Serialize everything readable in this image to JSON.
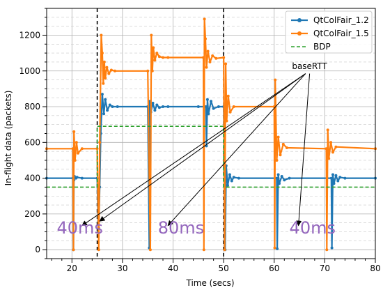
{
  "chart_data": {
    "type": "line",
    "xlabel": "Time (secs)",
    "ylabel": "In-flight data (packets)",
    "xlim": [
      15,
      80
    ],
    "ylim": [
      -50,
      1350
    ],
    "x_ticks": [
      20,
      30,
      40,
      50,
      60,
      70,
      80
    ],
    "y_ticks": [
      0,
      200,
      400,
      600,
      800,
      1000,
      1200
    ],
    "grid": true,
    "legend_position": "top-right",
    "colors": {
      "s1": "#1f77b4",
      "s2": "#ff7f0e",
      "bdp": "#2ca02c",
      "annot": "#9467bd"
    },
    "series": [
      {
        "name": "QtColFair_1.2",
        "color": "#1f77b4",
        "style": "line-marker",
        "x": [
          15,
          20.2,
          20.3,
          20.4,
          20.5,
          20.8,
          21,
          22,
          25,
          25.2,
          25.3,
          25.5,
          25.7,
          26,
          26.3,
          26.6,
          27,
          27.5,
          28,
          29,
          35,
          35.3,
          35.4,
          35.6,
          36,
          36.4,
          36.8,
          37.3,
          38,
          39,
          45,
          46.5,
          46.6,
          46.8,
          47,
          47.5,
          48,
          49,
          50,
          50.2,
          50.3,
          50.5,
          50.8,
          51.2,
          51.6,
          52,
          53,
          60.5,
          60.6,
          60.8,
          61,
          61.5,
          62,
          63,
          71.3,
          71.4,
          71.6,
          71.8,
          72.2,
          72.6,
          73,
          74,
          80
        ],
        "y": [
          400,
          400,
          0,
          390,
          410,
          400,
          405,
          400,
          400,
          100,
          120,
          350,
          650,
          870,
          760,
          840,
          780,
          810,
          800,
          800,
          800,
          10,
          830,
          770,
          820,
          780,
          810,
          795,
          800,
          800,
          800,
          800,
          580,
          840,
          760,
          830,
          790,
          800,
          800,
          320,
          0,
          470,
          360,
          420,
          385,
          405,
          400,
          400,
          5,
          420,
          370,
          410,
          390,
          400,
          400,
          10,
          420,
          370,
          415,
          385,
          405,
          400,
          400
        ]
      },
      {
        "name": "QtColFair_1.5",
        "color": "#ff7f0e",
        "style": "line-marker",
        "x": [
          15,
          20.2,
          20.3,
          20.4,
          20.6,
          20.9,
          21.2,
          22,
          25,
          25.3,
          25.5,
          25.8,
          26,
          26.2,
          26.4,
          26.6,
          26.9,
          27.3,
          27.8,
          28.5,
          35,
          35.5,
          35.7,
          35.9,
          36.1,
          36.4,
          36.8,
          37.3,
          38,
          39,
          46,
          46.1,
          46.2,
          46.4,
          46.6,
          46.9,
          47.3,
          47.8,
          48.5,
          50,
          50.2,
          50.4,
          50.6,
          50.9,
          51.3,
          52,
          60,
          60.1,
          60.2,
          60.5,
          60.8,
          61.2,
          61.8,
          62.5,
          70.3,
          70.4,
          70.6,
          70.8,
          71.2,
          71.6,
          72.2,
          80
        ],
        "y": [
          565,
          565,
          0,
          660,
          500,
          600,
          540,
          565,
          565,
          0,
          600,
          1200,
          1100,
          930,
          1050,
          960,
          1020,
          985,
          1005,
          1000,
          1000,
          0,
          1200,
          1000,
          1130,
          1060,
          1100,
          1080,
          1075,
          1075,
          1075,
          0,
          1290,
          1180,
          1020,
          1110,
          1050,
          1085,
          1070,
          1075,
          0,
          1040,
          720,
          860,
          770,
          800,
          800,
          10,
          950,
          500,
          630,
          530,
          590,
          570,
          565,
          0,
          670,
          510,
          600,
          545,
          575,
          565
        ]
      },
      {
        "name": "BDP",
        "color": "#2ca02c",
        "style": "dashed",
        "x": [
          15,
          25,
          25,
          50,
          50,
          80
        ],
        "y": [
          350,
          350,
          690,
          690,
          350,
          350
        ]
      }
    ],
    "vlines": [
      25,
      50
    ],
    "annotations": [
      {
        "text": "40ms",
        "x": 17,
        "y": 90,
        "size": "big"
      },
      {
        "text": "80ms",
        "x": 37,
        "y": 90,
        "size": "big"
      },
      {
        "text": "40ms",
        "x": 63,
        "y": 90,
        "size": "big"
      },
      {
        "text": "baseRTT",
        "x": 67,
        "y": 1010,
        "size": "small"
      }
    ],
    "arrows": [
      {
        "from": [
          66.2,
          985
        ],
        "to": [
          22,
          135
        ]
      },
      {
        "from": [
          66.2,
          985
        ],
        "to": [
          25.5,
          160
        ]
      },
      {
        "from": [
          66.2,
          985
        ],
        "to": [
          39,
          135
        ]
      },
      {
        "from": [
          67,
          985
        ],
        "to": [
          64.8,
          135
        ]
      }
    ]
  }
}
